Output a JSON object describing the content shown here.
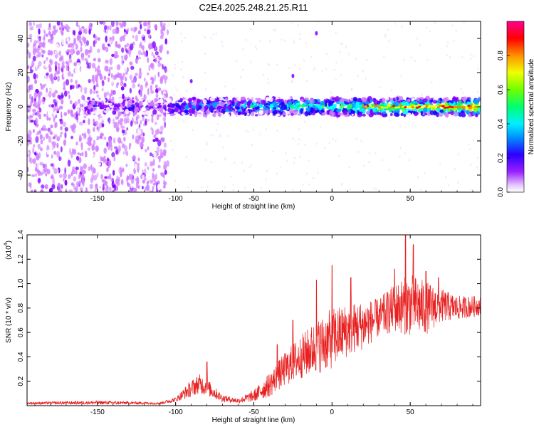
{
  "title": "C2E4.2025.248.21.25.R11",
  "chart_data": [
    {
      "type": "heatmap",
      "xlabel": "Height of straight line (km)",
      "ylabel": "Frequency (Hz)",
      "xlim": [
        -195,
        95
      ],
      "ylim": [
        -50,
        50
      ],
      "xticks": [
        -150,
        -100,
        -50,
        0,
        50
      ],
      "yticks": [
        -40,
        -20,
        0,
        20,
        40
      ],
      "colorbar": {
        "label": "Normalized spectral amplitude",
        "range": [
          0,
          1
        ],
        "ticks": [
          "0.0",
          "0.2",
          "0.4",
          "0.6",
          "0.8"
        ],
        "tick_values": [
          0.0,
          0.2,
          0.4,
          0.6,
          0.8
        ],
        "colors": [
          "#ffffff",
          "#d080ff",
          "#8000ff",
          "#2000ff",
          "#00a0ff",
          "#00ffff",
          "#00ff60",
          "#80ff00",
          "#ffff00",
          "#ff8000",
          "#ff0000",
          "#ff0080"
        ]
      },
      "description_values": {
        "noise_region_x": [
          -195,
          -105
        ],
        "signal_band_center_hz": 0,
        "signal_band_halfwidth_hz": 5,
        "spur_points": [
          {
            "x": -10,
            "y": 43
          },
          {
            "x": -25,
            "y": 18
          },
          {
            "x": -90,
            "y": 15
          }
        ]
      }
    },
    {
      "type": "line",
      "xlabel": "Height of straight line (km)",
      "ylabel": "SNR (10 * v/v)",
      "scale_label": "(x10",
      "scale_exp": "4",
      "scale_close": ")",
      "xlim": [
        -195,
        95
      ],
      "ylim": [
        0,
        1.4
      ],
      "xticks": [
        -150,
        -100,
        -50,
        0,
        50
      ],
      "yticks": [
        0.2,
        0.4,
        0.6,
        0.8,
        1.0,
        1.2,
        1.4
      ],
      "ytick_labels": [
        "0.2",
        "0.4",
        "0.6",
        "0.8",
        "1.0",
        "1.2",
        "1.4"
      ],
      "color": "#e82020",
      "envelope": {
        "x": [
          -195,
          -150,
          -110,
          -100,
          -90,
          -85,
          -80,
          -70,
          -60,
          -50,
          -40,
          -30,
          -20,
          -10,
          0,
          10,
          20,
          30,
          40,
          50,
          60,
          70,
          80,
          95
        ],
        "mean": [
          0.02,
          0.025,
          0.02,
          0.05,
          0.14,
          0.18,
          0.15,
          0.06,
          0.04,
          0.08,
          0.17,
          0.3,
          0.4,
          0.48,
          0.55,
          0.62,
          0.66,
          0.72,
          0.8,
          0.83,
          0.8,
          0.82,
          0.8,
          0.82
        ],
        "spread": [
          0.01,
          0.015,
          0.01,
          0.02,
          0.07,
          0.08,
          0.07,
          0.03,
          0.02,
          0.05,
          0.1,
          0.14,
          0.18,
          0.22,
          0.25,
          0.22,
          0.2,
          0.16,
          0.2,
          0.26,
          0.22,
          0.14,
          0.1,
          0.08
        ]
      },
      "peaks": [
        {
          "x": -80,
          "y": 0.36
        },
        {
          "x": -35,
          "y": 0.5
        },
        {
          "x": -25,
          "y": 0.7
        },
        {
          "x": -10,
          "y": 1.03
        },
        {
          "x": 0,
          "y": 1.15
        },
        {
          "x": 12,
          "y": 1.05
        },
        {
          "x": 40,
          "y": 1.12
        },
        {
          "x": 47,
          "y": 1.4
        },
        {
          "x": 52,
          "y": 1.32
        },
        {
          "x": 60,
          "y": 1.1
        },
        {
          "x": 68,
          "y": 1.05
        }
      ]
    }
  ]
}
